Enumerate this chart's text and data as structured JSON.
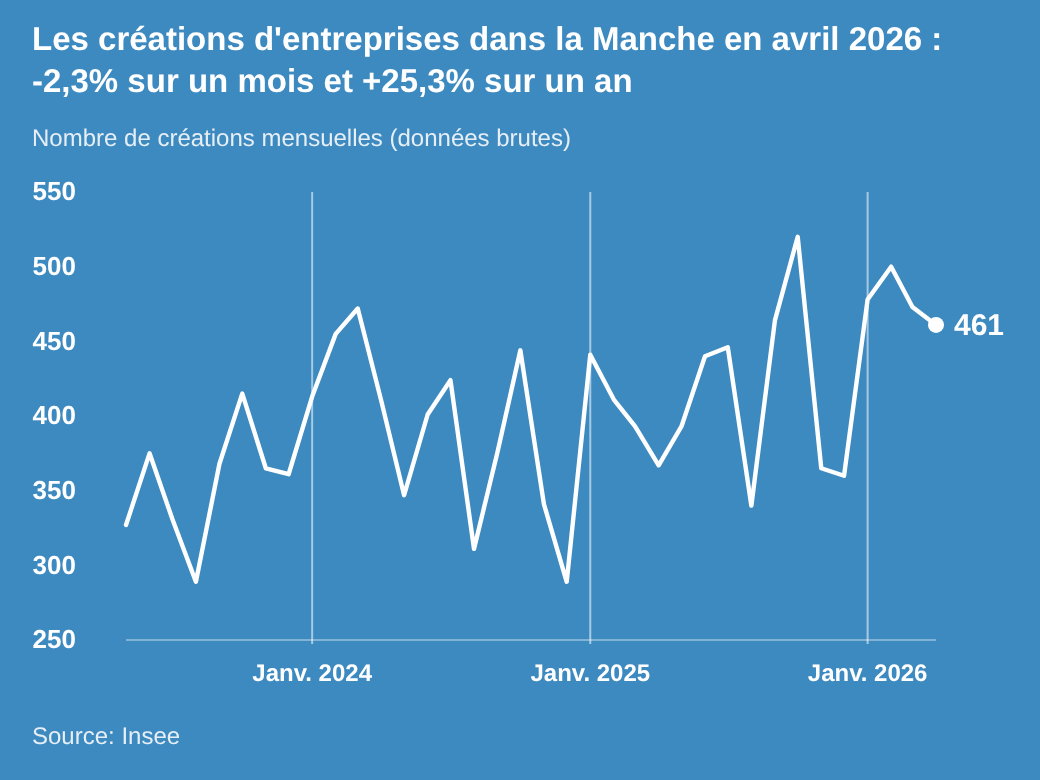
{
  "chart_data": {
    "type": "line",
    "title": "Les créations d'entreprises dans la Manche en avril 2026 :\n-2,3% sur un mois et +25,3% sur un an",
    "subtitle": "Nombre de créations mensuelles (données brutes)",
    "x": [
      "2023-05",
      "2023-06",
      "2023-07",
      "2023-08",
      "2023-09",
      "2023-10",
      "2023-11",
      "2023-12",
      "2024-01",
      "2024-02",
      "2024-03",
      "2024-04",
      "2024-05",
      "2024-06",
      "2024-07",
      "2024-08",
      "2024-09",
      "2024-10",
      "2024-11",
      "2024-12",
      "2025-01",
      "2025-02",
      "2025-03",
      "2025-04",
      "2025-05",
      "2025-06",
      "2025-07",
      "2025-08",
      "2025-09",
      "2025-10",
      "2025-11",
      "2025-12",
      "2026-01",
      "2026-02",
      "2026-03",
      "2026-04"
    ],
    "series": [
      {
        "color": "#ffffff",
        "values": [
          327,
          375,
          331,
          289,
          368,
          415,
          365,
          361,
          413,
          455,
          472,
          410,
          347,
          401,
          424,
          311,
          376,
          444,
          341,
          289,
          441,
          411,
          393,
          367,
          393,
          440,
          446,
          340,
          464,
          520,
          365,
          360,
          478,
          500,
          473,
          461
        ]
      }
    ],
    "xlim": [
      "2023-05",
      "2026-04"
    ],
    "xticks": [
      {
        "value": "2024-01",
        "label": "Janv. 2024"
      },
      {
        "value": "2025-01",
        "label": "Janv. 2025"
      },
      {
        "value": "2026-01",
        "label": "Janv. 2026"
      }
    ],
    "ylim": [
      250,
      550
    ],
    "yticks": [
      250,
      300,
      350,
      400,
      450,
      500,
      550
    ],
    "grid": "x",
    "marker": "none",
    "line_style": "solid",
    "annotations": [
      {
        "text": "461",
        "x": "2026-04",
        "y": 461
      },
      "Source: Insee"
    ]
  }
}
